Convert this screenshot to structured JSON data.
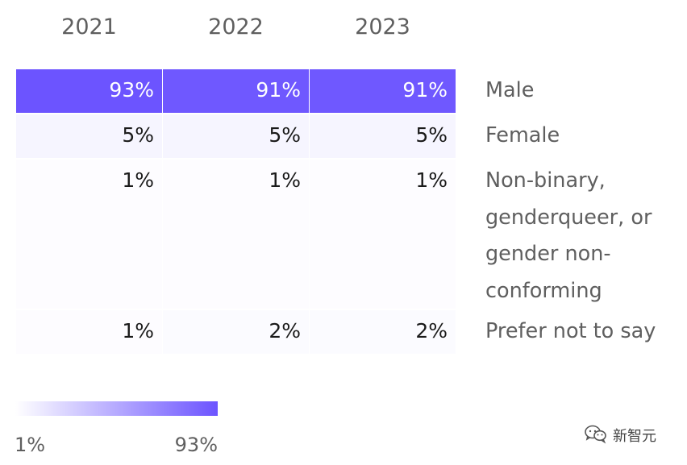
{
  "chart_data": {
    "type": "table",
    "title": "",
    "columns": [
      "2021",
      "2022",
      "2023"
    ],
    "rows": [
      {
        "label": "Male",
        "values": [
          93,
          91,
          91
        ],
        "display": [
          "93%",
          "91%",
          "91%"
        ]
      },
      {
        "label": "Female",
        "values": [
          5,
          5,
          5
        ],
        "display": [
          "5%",
          "5%",
          "5%"
        ]
      },
      {
        "label": "Non-binary, genderqueer, or gender non-conforming",
        "label_lines": [
          "Non-binary,",
          "genderqueer, or",
          "gender non-",
          "conforming"
        ],
        "values": [
          1,
          1,
          1
        ],
        "display": [
          "1%",
          "1%",
          "1%"
        ]
      },
      {
        "label": "Prefer not to say",
        "values": [
          1,
          2,
          2
        ],
        "display": [
          "1%",
          "2%",
          "2%"
        ]
      }
    ],
    "color_scale": {
      "min": 1,
      "max": 93,
      "min_label": "1%",
      "max_label": "93%",
      "min_color": "#ffffff",
      "max_color": "#6c54ff"
    }
  },
  "watermark": {
    "text": "新智元",
    "icon": "wechat-icon"
  }
}
